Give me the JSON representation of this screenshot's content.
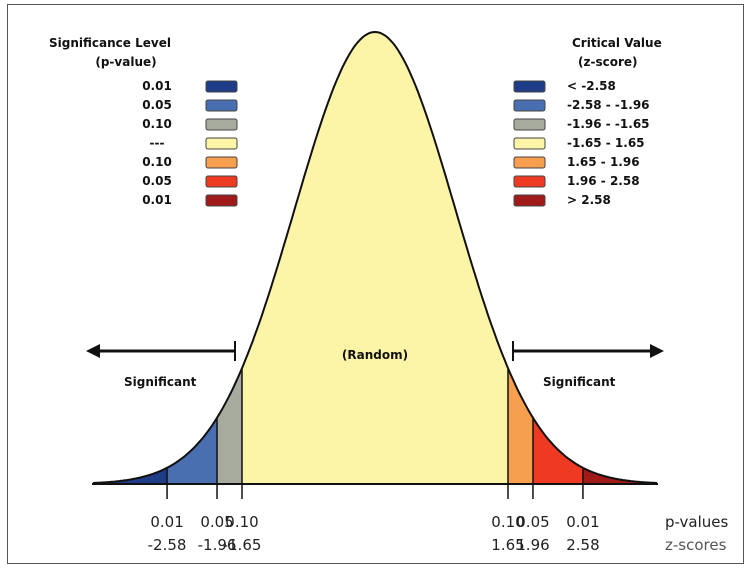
{
  "left_legend": {
    "title_line1": "Significance Level",
    "title_line2": "(p-value)",
    "rows": [
      {
        "label": "0.01",
        "color": "#1f3c88"
      },
      {
        "label": "0.05",
        "color": "#4a6fb0"
      },
      {
        "label": "0.10",
        "color": "#a6ab9e"
      },
      {
        "label": "---",
        "color": "#fcf5a8"
      },
      {
        "label": "0.10",
        "color": "#f6a04f"
      },
      {
        "label": "0.05",
        "color": "#ee3a22"
      },
      {
        "label": "0.01",
        "color": "#a01a1a"
      }
    ]
  },
  "right_legend": {
    "title_line1": "Critical Value",
    "title_line2": "(z-score)",
    "rows": [
      {
        "label": "< -2.58",
        "color": "#1f3c88"
      },
      {
        "label": "-2.58 - -1.96",
        "color": "#4a6fb0"
      },
      {
        "label": "-1.96 - -1.65",
        "color": "#a6ab9e"
      },
      {
        "label": "-1.65 - 1.65",
        "color": "#fcf5a8"
      },
      {
        "label": "1.65 - 1.96",
        "color": "#f6a04f"
      },
      {
        "label": "1.96 - 2.58",
        "color": "#ee3a22"
      },
      {
        "label": "> 2.58",
        "color": "#a01a1a"
      }
    ]
  },
  "labels": {
    "random": "(Random)",
    "significant_left": "Significant",
    "significant_right": "Significant",
    "p_values": "p-values",
    "z_scores": "z-scores"
  },
  "ticks": [
    {
      "z": -2.58,
      "p": "0.01",
      "zlabel": "-2.58"
    },
    {
      "z": -1.96,
      "p": "0.05",
      "zlabel": "-1.96"
    },
    {
      "z": -1.65,
      "p": "0.10",
      "zlabel": "-1.65"
    },
    {
      "z": 1.65,
      "p": "0.10",
      "zlabel": "1.65"
    },
    {
      "z": 1.96,
      "p": "0.05",
      "zlabel": "1.96"
    },
    {
      "z": 2.58,
      "p": "0.01",
      "zlabel": "2.58"
    }
  ],
  "regions": [
    {
      "from": -3.8,
      "to": -2.58,
      "color": "#1f3c88"
    },
    {
      "from": -2.58,
      "to": -1.96,
      "color": "#4a6fb0"
    },
    {
      "from": -1.96,
      "to": -1.65,
      "color": "#a6ab9e"
    },
    {
      "from": -1.65,
      "to": 1.65,
      "color": "#fcf5a8"
    },
    {
      "from": 1.65,
      "to": 1.96,
      "color": "#f6a04f"
    },
    {
      "from": 1.96,
      "to": 2.58,
      "color": "#ee3a22"
    },
    {
      "from": 2.58,
      "to": 3.8,
      "color": "#a01a1a"
    }
  ]
}
